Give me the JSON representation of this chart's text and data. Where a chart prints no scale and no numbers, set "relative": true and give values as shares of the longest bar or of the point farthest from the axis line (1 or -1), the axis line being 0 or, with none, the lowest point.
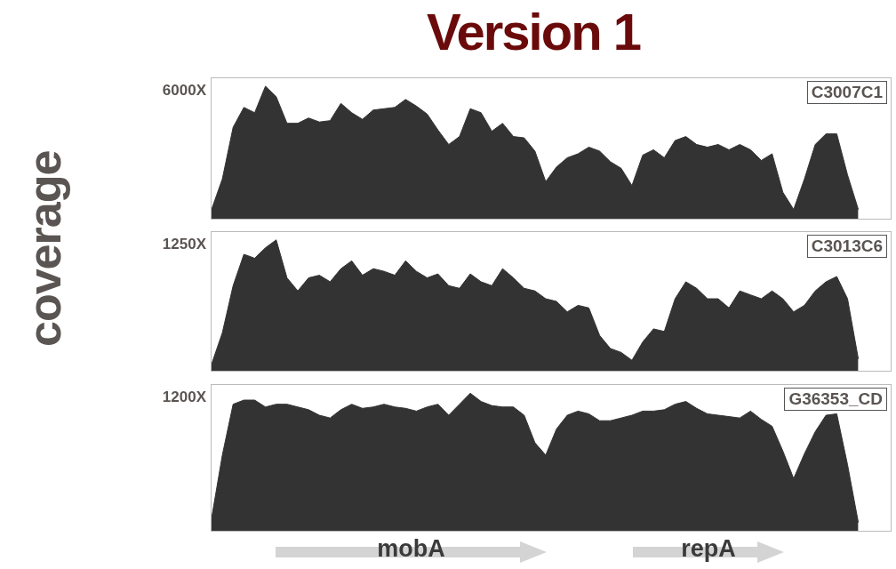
{
  "chart_data": [
    {
      "type": "area",
      "title": "Version 1",
      "ylabel": "coverage",
      "relative": true,
      "categories": [
        null,
        null,
        null,
        null,
        null,
        null,
        null,
        null,
        null,
        null,
        null,
        null,
        null,
        null,
        null,
        null,
        null,
        null,
        null,
        null,
        null,
        null,
        null,
        null,
        null,
        null,
        null,
        null,
        null,
        null,
        null,
        null,
        null,
        null,
        null,
        null,
        null,
        null,
        null,
        null,
        null,
        null,
        null,
        null,
        null,
        null,
        null,
        null,
        null,
        null,
        null,
        null,
        null,
        null,
        null,
        null,
        null,
        null,
        null,
        null,
        null,
        null,
        null,
        null
      ],
      "series": [
        {
          "color": "#333333",
          "values": [
            0.07,
            0.3,
            0.69,
            0.84,
            0.8,
            1.0,
            0.92,
            0.72,
            0.72,
            0.76,
            0.73,
            0.74,
            0.87,
            0.8,
            0.75,
            0.82,
            0.83,
            0.84,
            0.9,
            0.85,
            0.79,
            0.67,
            0.56,
            0.62,
            0.83,
            0.8,
            0.66,
            0.72,
            0.62,
            0.61,
            0.51,
            0.28,
            0.39,
            0.46,
            0.49,
            0.54,
            0.51,
            0.43,
            0.38,
            0.25,
            0.48,
            0.52,
            0.46,
            0.59,
            0.62,
            0.56,
            0.54,
            0.56,
            0.52,
            0.56,
            0.52,
            0.44,
            0.49,
            0.2,
            0.07,
            0.3,
            0.56,
            0.64,
            0.64,
            0.33,
            0.07,
            null,
            null,
            null
          ]
        }
      ],
      "annotations": [
        "6000X",
        "C3007C1"
      ]
    },
    {
      "type": "area",
      "relative": true,
      "categories": [
        null,
        null,
        null,
        null,
        null,
        null,
        null,
        null,
        null,
        null,
        null,
        null,
        null,
        null,
        null,
        null,
        null,
        null,
        null,
        null,
        null,
        null,
        null,
        null,
        null,
        null,
        null,
        null,
        null,
        null,
        null,
        null,
        null,
        null,
        null,
        null,
        null,
        null,
        null,
        null,
        null,
        null,
        null,
        null,
        null,
        null,
        null,
        null,
        null,
        null,
        null,
        null,
        null,
        null,
        null,
        null,
        null,
        null,
        null,
        null,
        null,
        null,
        null,
        null
      ],
      "series": [
        {
          "color": "#333333",
          "values": [
            0.05,
            0.29,
            0.65,
            0.89,
            0.86,
            0.94,
            1.0,
            0.71,
            0.61,
            0.71,
            0.73,
            0.68,
            0.78,
            0.84,
            0.73,
            0.78,
            0.76,
            0.73,
            0.84,
            0.76,
            0.71,
            0.74,
            0.65,
            0.63,
            0.74,
            0.68,
            0.65,
            0.78,
            0.71,
            0.63,
            0.61,
            0.55,
            0.53,
            0.45,
            0.5,
            0.48,
            0.27,
            0.17,
            0.14,
            0.08,
            0.22,
            0.32,
            0.3,
            0.55,
            0.68,
            0.63,
            0.55,
            0.55,
            0.48,
            0.61,
            0.58,
            0.55,
            0.61,
            0.55,
            0.45,
            0.5,
            0.61,
            0.68,
            0.72,
            0.55,
            0.09,
            null,
            null,
            null
          ]
        }
      ],
      "annotations": [
        "1250X",
        "C3013C6"
      ]
    },
    {
      "type": "area",
      "relative": true,
      "categories": [
        null,
        null,
        null,
        null,
        null,
        null,
        null,
        null,
        null,
        null,
        null,
        null,
        null,
        null,
        null,
        null,
        null,
        null,
        null,
        null,
        null,
        null,
        null,
        null,
        null,
        null,
        null,
        null,
        null,
        null,
        null,
        null,
        null,
        null,
        null,
        null,
        null,
        null,
        null,
        null,
        null,
        null,
        null,
        null,
        null,
        null,
        null,
        null,
        null,
        null,
        null,
        null,
        null,
        null,
        null,
        null,
        null,
        null,
        null,
        null,
        null,
        null,
        null,
        null
      ],
      "series": [
        {
          "color": "#333333",
          "values": [
            0.09,
            0.55,
            0.92,
            0.95,
            0.95,
            0.9,
            0.92,
            0.92,
            0.9,
            0.88,
            0.84,
            0.82,
            0.88,
            0.92,
            0.89,
            0.9,
            0.92,
            0.9,
            0.89,
            0.87,
            0.9,
            0.92,
            0.84,
            0.92,
            1.0,
            0.94,
            0.91,
            0.9,
            0.9,
            0.84,
            0.64,
            0.55,
            0.74,
            0.84,
            0.87,
            0.85,
            0.8,
            0.8,
            0.82,
            0.84,
            0.87,
            0.87,
            0.88,
            0.92,
            0.94,
            0.89,
            0.85,
            0.84,
            0.83,
            0.82,
            0.87,
            0.81,
            0.76,
            0.58,
            0.38,
            0.56,
            0.72,
            0.84,
            0.85,
            0.48,
            0.06,
            null,
            null,
            null
          ]
        }
      ],
      "annotations": [
        "1200X",
        "G36353_CD",
        "mobA",
        "repA"
      ]
    }
  ]
}
